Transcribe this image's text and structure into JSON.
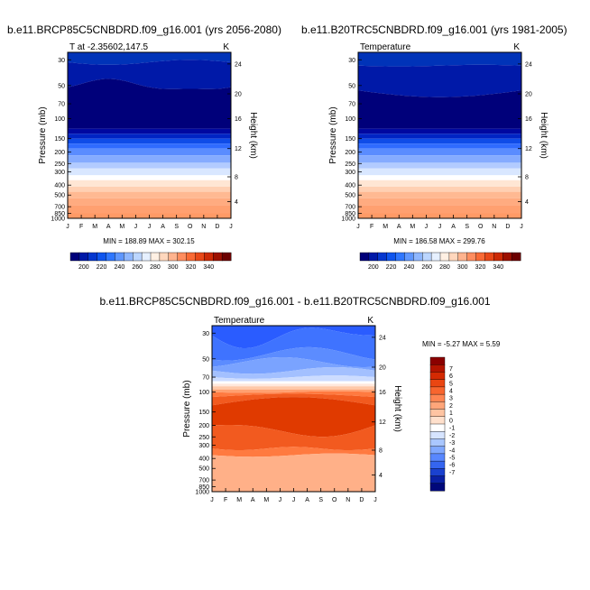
{
  "chart_data": [
    {
      "type": "heatmap",
      "title": "b.e11.BRCP85C5CNBDRD.f09_g16.001 (yrs 2056-2080)",
      "subtitle_left": "T at -2.35602,147.5",
      "subtitle_right": "K",
      "ylabel": "Pressure (mb)",
      "ylabel_right": "Height (km)",
      "months": [
        "J",
        "F",
        "M",
        "A",
        "M",
        "J",
        "J",
        "A",
        "S",
        "O",
        "N",
        "D",
        "J"
      ],
      "pressure_ticks": [
        "30",
        "50",
        "70",
        "100",
        "150",
        "200",
        "250",
        "300",
        "400",
        "500",
        "700",
        "850",
        "1000"
      ],
      "height_ticks": [
        "24",
        "20",
        "16",
        "12",
        "8",
        "4"
      ],
      "min_max": "MIN = 188.89 MAX = 302.15",
      "colorbar_labels": [
        "200",
        "220",
        "240",
        "260",
        "280",
        "300",
        "320",
        "340"
      ],
      "colorbar_colors": [
        "#00007a",
        "#0019a8",
        "#0537cf",
        "#0f55ee",
        "#2f77ff",
        "#5f97ff",
        "#8fb7ff",
        "#bcd6ff",
        "#e6f0ff",
        "#fff0e3",
        "#ffd7bd",
        "#ffb38e",
        "#ff8d5f",
        "#f96a35",
        "#e84818",
        "#cc2a06",
        "#9c1000",
        "#6b0000"
      ]
    },
    {
      "type": "heatmap",
      "title": "b.e11.B20TRC5CNBDRD.f09_g16.001 (yrs 1981-2005)",
      "subtitle_left": "Temperature",
      "subtitle_right": "K",
      "ylabel": "Pressure (mb)",
      "ylabel_right": "Height (km)",
      "months": [
        "J",
        "F",
        "M",
        "A",
        "M",
        "J",
        "J",
        "A",
        "S",
        "O",
        "N",
        "D",
        "J"
      ],
      "pressure_ticks": [
        "30",
        "50",
        "70",
        "100",
        "150",
        "200",
        "250",
        "300",
        "400",
        "500",
        "700",
        "850",
        "1000"
      ],
      "height_ticks": [
        "24",
        "20",
        "16",
        "12",
        "8",
        "4"
      ],
      "min_max": "MIN = 186.58 MAX = 299.76",
      "colorbar_labels": [
        "200",
        "220",
        "240",
        "260",
        "280",
        "300",
        "320",
        "340"
      ],
      "colorbar_colors": [
        "#00007a",
        "#0019a8",
        "#0537cf",
        "#0f55ee",
        "#2f77ff",
        "#5f97ff",
        "#8fb7ff",
        "#bcd6ff",
        "#e6f0ff",
        "#fff0e3",
        "#ffd7bd",
        "#ffb38e",
        "#ff8d5f",
        "#f96a35",
        "#e84818",
        "#cc2a06",
        "#9c1000",
        "#6b0000"
      ]
    },
    {
      "type": "heatmap",
      "title": "b.e11.BRCP85C5CNBDRD.f09_g16.001 - b.e11.B20TRC5CNBDRD.f09_g16.001",
      "subtitle_left": "Temperature",
      "subtitle_right": "K",
      "ylabel": "Pressure (mb)",
      "ylabel_right": "Height (km)",
      "months": [
        "J",
        "F",
        "M",
        "A",
        "M",
        "J",
        "J",
        "A",
        "S",
        "O",
        "N",
        "D",
        "J"
      ],
      "pressure_ticks": [
        "30",
        "50",
        "70",
        "100",
        "150",
        "200",
        "250",
        "300",
        "400",
        "500",
        "700",
        "850",
        "1000"
      ],
      "height_ticks": [
        "24",
        "20",
        "16",
        "12",
        "8",
        "4"
      ],
      "min_max": "MIN =  -5.27 MAX =    5.59",
      "colorbar_labels": [
        "7",
        "6",
        "5",
        "4",
        "3",
        "2",
        "1",
        "0",
        "-1",
        "-2",
        "-3",
        "-4",
        "-5",
        "-6",
        "-7"
      ],
      "colorbar_colors": [
        "#8b0000",
        "#b41400",
        "#d42a02",
        "#ea4612",
        "#f8652e",
        "#ff8552",
        "#ffa67a",
        "#ffc4a2",
        "#ffe0cc",
        "#ffffff",
        "#d6e4ff",
        "#aac7ff",
        "#80a8ff",
        "#5887ff",
        "#3565f0",
        "#1a41cf",
        "#0a20a5",
        "#00087a"
      ]
    }
  ]
}
